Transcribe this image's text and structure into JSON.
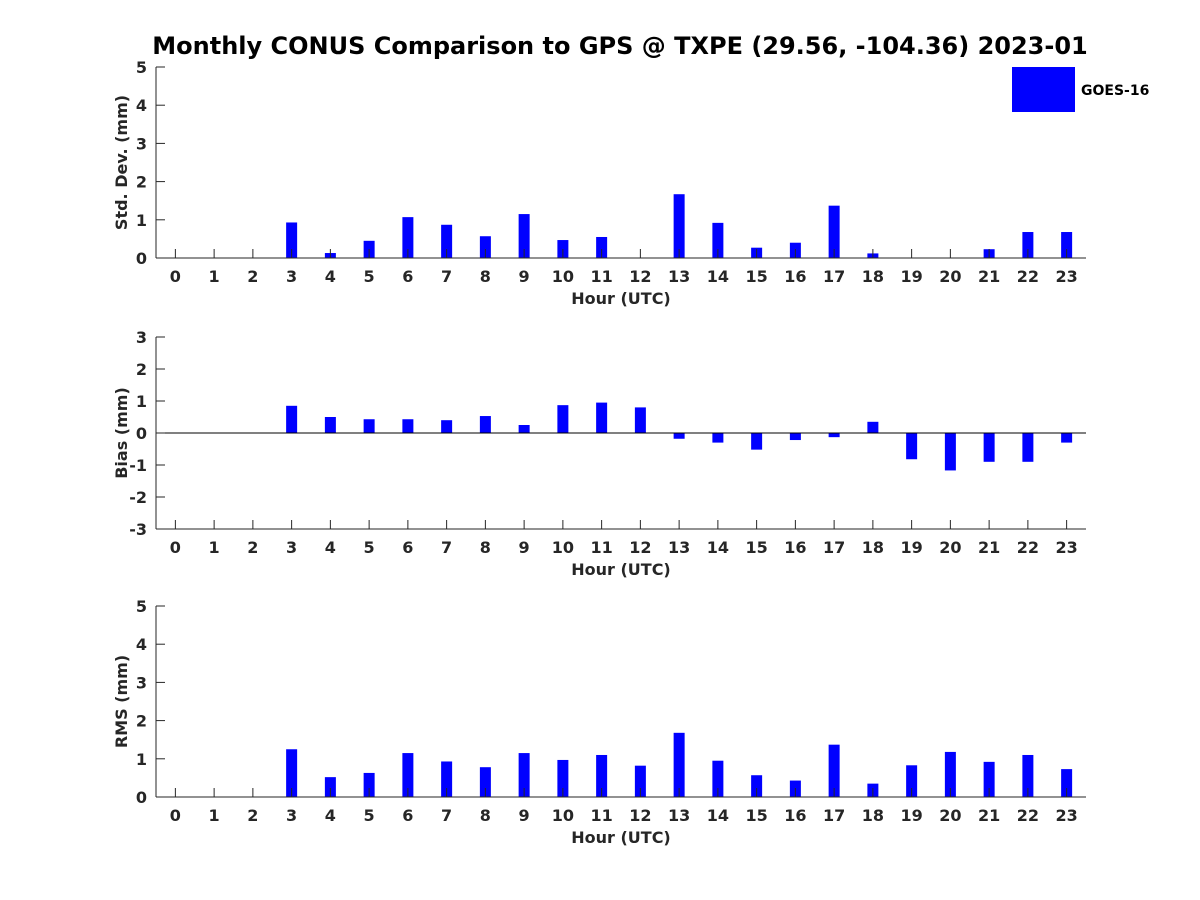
{
  "chart_data": [
    {
      "type": "bar",
      "title": "Monthly CONUS Comparison to GPS @ TXPE (29.56, -104.36) 2023-01",
      "xlabel": "Hour (UTC)",
      "ylabel": "Std. Dev. (mm)",
      "ylim": [
        0,
        5
      ],
      "yticks": [
        0,
        1,
        2,
        3,
        4,
        5
      ],
      "categories": [
        "0",
        "1",
        "2",
        "3",
        "4",
        "5",
        "6",
        "7",
        "8",
        "9",
        "10",
        "11",
        "12",
        "13",
        "14",
        "15",
        "16",
        "17",
        "18",
        "19",
        "20",
        "21",
        "22",
        "23"
      ],
      "series": [
        {
          "name": "GOES-16",
          "color": "#0000ff",
          "values": [
            null,
            null,
            null,
            0.93,
            0.13,
            0.45,
            1.07,
            0.87,
            0.57,
            1.15,
            0.47,
            0.55,
            null,
            1.67,
            0.92,
            0.27,
            0.4,
            1.37,
            0.12,
            null,
            null,
            0.23,
            0.68,
            0.68
          ]
        }
      ],
      "legend": {
        "position": "top-right",
        "entries": [
          "GOES-16"
        ]
      }
    },
    {
      "type": "bar",
      "xlabel": "Hour (UTC)",
      "ylabel": "Bias (mm)",
      "ylim": [
        -3,
        3
      ],
      "yticks": [
        -3,
        -2,
        -1,
        0,
        1,
        2,
        3
      ],
      "categories": [
        "0",
        "1",
        "2",
        "3",
        "4",
        "5",
        "6",
        "7",
        "8",
        "9",
        "10",
        "11",
        "12",
        "13",
        "14",
        "15",
        "16",
        "17",
        "18",
        "19",
        "20",
        "21",
        "22",
        "23"
      ],
      "series": [
        {
          "name": "GOES-16",
          "color": "#0000ff",
          "values": [
            null,
            null,
            null,
            0.85,
            0.5,
            0.43,
            0.43,
            0.4,
            0.53,
            0.25,
            0.87,
            0.95,
            0.8,
            -0.18,
            -0.3,
            -0.52,
            -0.22,
            -0.13,
            0.35,
            -0.82,
            -1.17,
            -0.9,
            -0.9,
            -0.3
          ]
        }
      ]
    },
    {
      "type": "bar",
      "xlabel": "Hour (UTC)",
      "ylabel": "RMS (mm)",
      "ylim": [
        0,
        5
      ],
      "yticks": [
        0,
        1,
        2,
        3,
        4,
        5
      ],
      "categories": [
        "0",
        "1",
        "2",
        "3",
        "4",
        "5",
        "6",
        "7",
        "8",
        "9",
        "10",
        "11",
        "12",
        "13",
        "14",
        "15",
        "16",
        "17",
        "18",
        "19",
        "20",
        "21",
        "22",
        "23"
      ],
      "series": [
        {
          "name": "GOES-16",
          "color": "#0000ff",
          "values": [
            null,
            null,
            null,
            1.25,
            0.52,
            0.63,
            1.15,
            0.93,
            0.78,
            1.15,
            0.97,
            1.1,
            0.82,
            1.68,
            0.95,
            0.57,
            0.43,
            1.37,
            0.35,
            0.83,
            1.18,
            0.92,
            1.1,
            0.73
          ]
        }
      ]
    }
  ]
}
